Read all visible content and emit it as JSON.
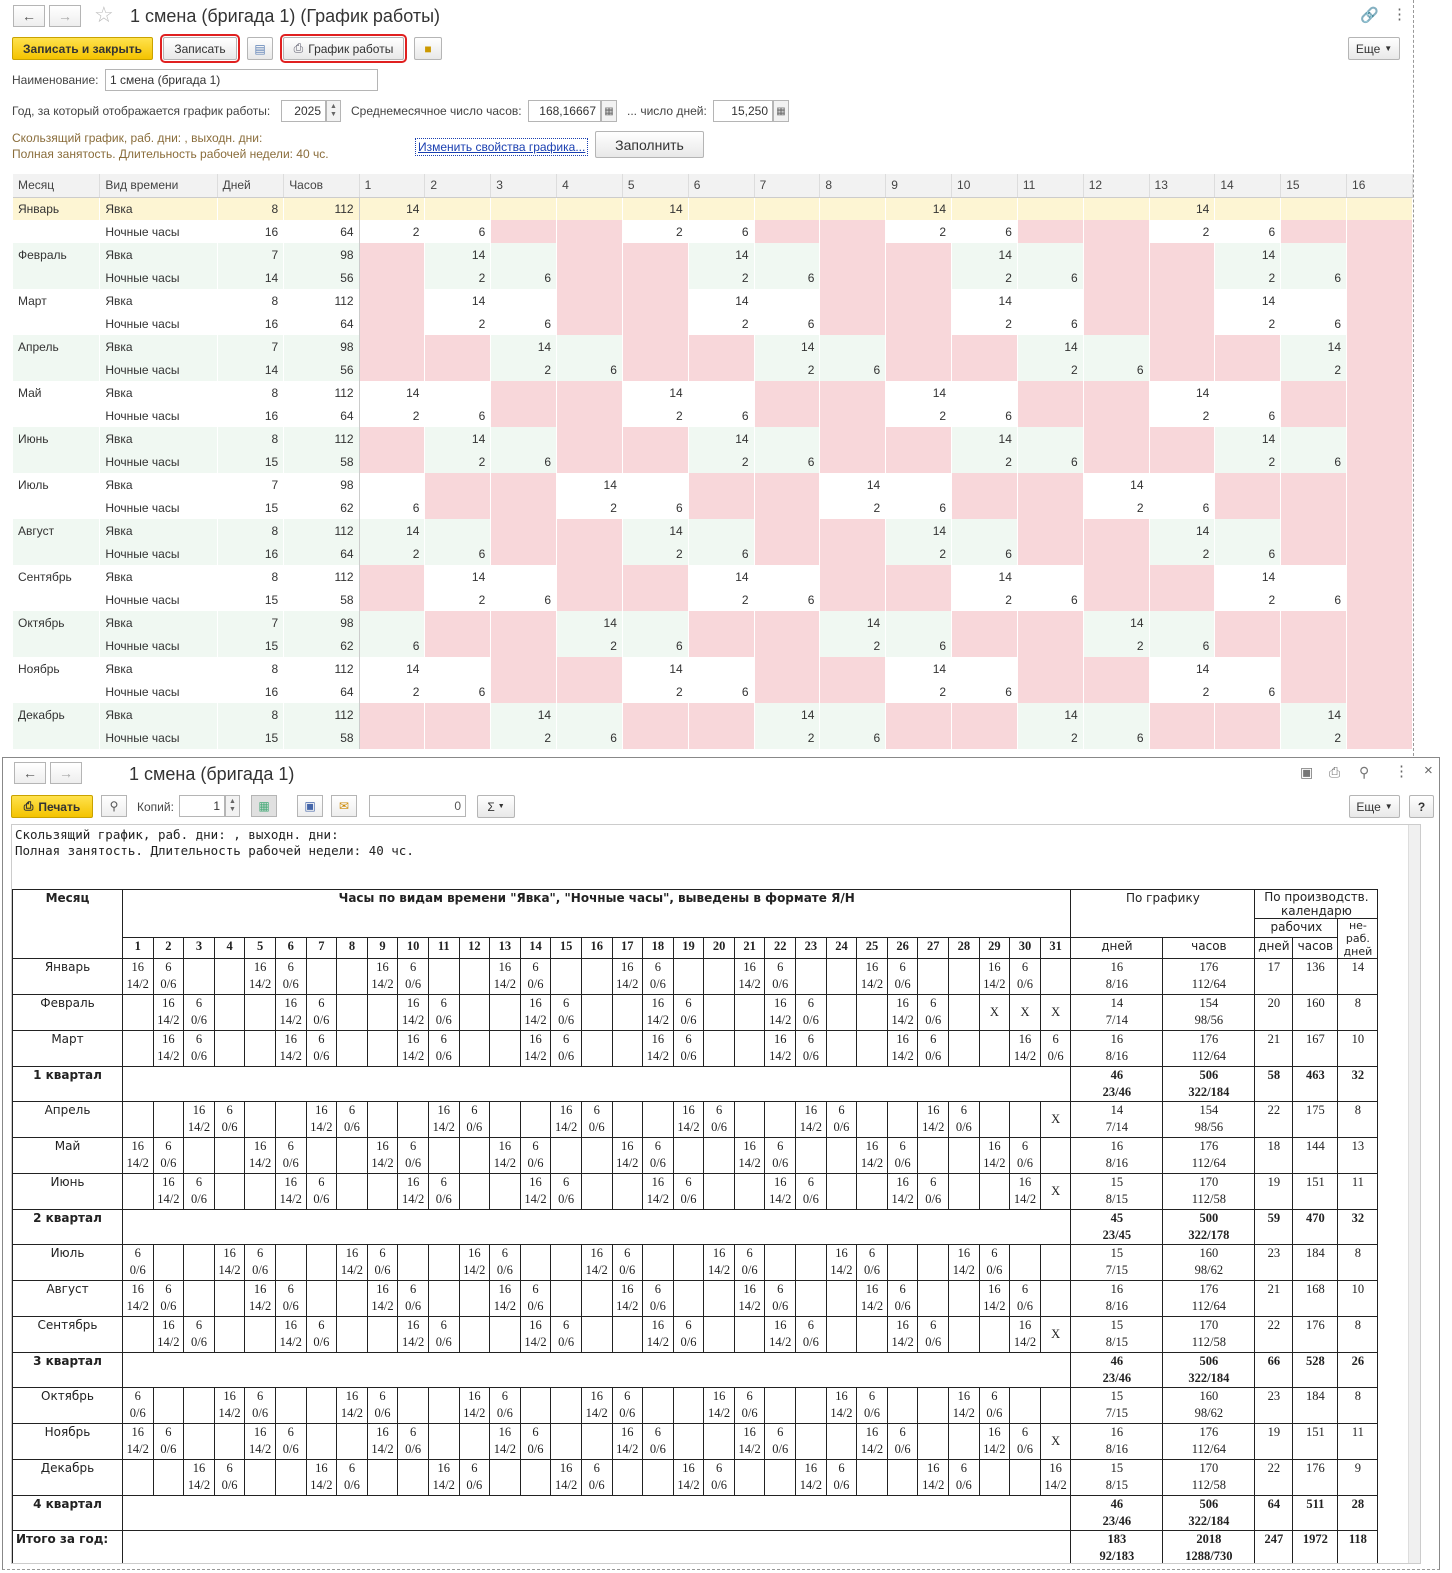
{
  "w1": {
    "title": "1 смена (бригада 1) (График работы)",
    "btn_save_close": "Записать и закрыть",
    "btn_save": "Записать",
    "btn_schedule": "График работы",
    "btn_more": "Еще",
    "name_label": "Наименование:",
    "name_value": "1 смена (бригада 1)",
    "year_label": "Год, за который отображается график работы:",
    "year_value": "2025",
    "avg_hours_label": "Среднемесячное число часов:",
    "avg_hours_value": "168,16667",
    "avg_days_label": "... число дней:",
    "avg_days_value": "15,250",
    "info_line1": "Скользящий график, раб. дни: , выходн. дни:",
    "info_line2": "Полная занятость. Длительность рабочей недели: 40 чс.",
    "change_link": "Изменить свойства графика...",
    "fill_btn": "Заполнить",
    "columns": [
      "Месяц",
      "Вид времени",
      "Дней",
      "Часов",
      "1",
      "2",
      "3",
      "4",
      "5",
      "6",
      "7",
      "8",
      "9",
      "10",
      "11",
      "12",
      "13",
      "14",
      "15",
      "16"
    ],
    "rows": [
      {
        "m": "Январь",
        "t": "Явка",
        "d": "8",
        "h": "112",
        "c": [
          "14",
          "",
          "",
          "",
          "14",
          "",
          "",
          "",
          "14",
          "",
          "",
          "",
          "14",
          "",
          "",
          ""
        ]
      },
      {
        "m": "",
        "t": "Ночные часы",
        "d": "16",
        "h": "64",
        "c": [
          "2",
          "6",
          "",
          "",
          "2",
          "6",
          "",
          "",
          "2",
          "6",
          "",
          "",
          "2",
          "6",
          "",
          ""
        ]
      },
      {
        "m": "Февраль",
        "t": "Явка",
        "d": "7",
        "h": "98",
        "c": [
          "",
          "14",
          "",
          "",
          "",
          "14",
          "",
          "",
          "",
          "14",
          "",
          "",
          "",
          "14",
          "",
          ""
        ]
      },
      {
        "m": "",
        "t": "Ночные часы",
        "d": "14",
        "h": "56",
        "c": [
          "",
          "2",
          "6",
          "",
          "",
          "2",
          "6",
          "",
          "",
          "2",
          "6",
          "",
          "",
          "2",
          "6",
          ""
        ]
      },
      {
        "m": "Март",
        "t": "Явка",
        "d": "8",
        "h": "112",
        "c": [
          "",
          "14",
          "",
          "",
          "",
          "14",
          "",
          "",
          "",
          "14",
          "",
          "",
          "",
          "14",
          "",
          ""
        ]
      },
      {
        "m": "",
        "t": "Ночные часы",
        "d": "16",
        "h": "64",
        "c": [
          "",
          "2",
          "6",
          "",
          "",
          "2",
          "6",
          "",
          "",
          "2",
          "6",
          "",
          "",
          "2",
          "6",
          ""
        ]
      },
      {
        "m": "Апрель",
        "t": "Явка",
        "d": "7",
        "h": "98",
        "c": [
          "",
          "",
          "14",
          "",
          "",
          "",
          "14",
          "",
          "",
          "",
          "14",
          "",
          "",
          "",
          "14",
          ""
        ]
      },
      {
        "m": "",
        "t": "Ночные часы",
        "d": "14",
        "h": "56",
        "c": [
          "",
          "",
          "2",
          "6",
          "",
          "",
          "2",
          "6",
          "",
          "",
          "2",
          "6",
          "",
          "",
          "2",
          ""
        ]
      },
      {
        "m": "Май",
        "t": "Явка",
        "d": "8",
        "h": "112",
        "c": [
          "14",
          "",
          "",
          "",
          "14",
          "",
          "",
          "",
          "14",
          "",
          "",
          "",
          "14",
          "",
          "",
          ""
        ]
      },
      {
        "m": "",
        "t": "Ночные часы",
        "d": "16",
        "h": "64",
        "c": [
          "2",
          "6",
          "",
          "",
          "2",
          "6",
          "",
          "",
          "2",
          "6",
          "",
          "",
          "2",
          "6",
          "",
          ""
        ]
      },
      {
        "m": "Июнь",
        "t": "Явка",
        "d": "8",
        "h": "112",
        "c": [
          "",
          "14",
          "",
          "",
          "",
          "14",
          "",
          "",
          "",
          "14",
          "",
          "",
          "",
          "14",
          "",
          ""
        ]
      },
      {
        "m": "",
        "t": "Ночные часы",
        "d": "15",
        "h": "58",
        "c": [
          "",
          "2",
          "6",
          "",
          "",
          "2",
          "6",
          "",
          "",
          "2",
          "6",
          "",
          "",
          "2",
          "6",
          ""
        ]
      },
      {
        "m": "Июль",
        "t": "Явка",
        "d": "7",
        "h": "98",
        "c": [
          "",
          "",
          "",
          "14",
          "",
          "",
          "",
          "14",
          "",
          "",
          "",
          "14",
          "",
          "",
          "",
          ""
        ]
      },
      {
        "m": "",
        "t": "Ночные часы",
        "d": "15",
        "h": "62",
        "c": [
          "6",
          "",
          "",
          "2",
          "6",
          "",
          "",
          "2",
          "6",
          "",
          "",
          "2",
          "6",
          "",
          "",
          ""
        ]
      },
      {
        "m": "Август",
        "t": "Явка",
        "d": "8",
        "h": "112",
        "c": [
          "14",
          "",
          "",
          "",
          "14",
          "",
          "",
          "",
          "14",
          "",
          "",
          "",
          "14",
          "",
          "",
          ""
        ]
      },
      {
        "m": "",
        "t": "Ночные часы",
        "d": "16",
        "h": "64",
        "c": [
          "2",
          "6",
          "",
          "",
          "2",
          "6",
          "",
          "",
          "2",
          "6",
          "",
          "",
          "2",
          "6",
          "",
          ""
        ]
      },
      {
        "m": "Сентябрь",
        "t": "Явка",
        "d": "8",
        "h": "112",
        "c": [
          "",
          "14",
          "",
          "",
          "",
          "14",
          "",
          "",
          "",
          "14",
          "",
          "",
          "",
          "14",
          "",
          ""
        ]
      },
      {
        "m": "",
        "t": "Ночные часы",
        "d": "15",
        "h": "58",
        "c": [
          "",
          "2",
          "6",
          "",
          "",
          "2",
          "6",
          "",
          "",
          "2",
          "6",
          "",
          "",
          "2",
          "6",
          ""
        ]
      },
      {
        "m": "Октябрь",
        "t": "Явка",
        "d": "7",
        "h": "98",
        "c": [
          "",
          "",
          "",
          "14",
          "",
          "",
          "",
          "14",
          "",
          "",
          "",
          "14",
          "",
          "",
          "",
          ""
        ]
      },
      {
        "m": "",
        "t": "Ночные часы",
        "d": "15",
        "h": "62",
        "c": [
          "6",
          "",
          "",
          "2",
          "6",
          "",
          "",
          "2",
          "6",
          "",
          "",
          "2",
          "6",
          "",
          "",
          ""
        ]
      },
      {
        "m": "Ноябрь",
        "t": "Явка",
        "d": "8",
        "h": "112",
        "c": [
          "14",
          "",
          "",
          "",
          "14",
          "",
          "",
          "",
          "14",
          "",
          "",
          "",
          "14",
          "",
          "",
          ""
        ]
      },
      {
        "m": "",
        "t": "Ночные часы",
        "d": "16",
        "h": "64",
        "c": [
          "2",
          "6",
          "",
          "",
          "2",
          "6",
          "",
          "",
          "2",
          "6",
          "",
          "",
          "2",
          "6",
          "",
          ""
        ]
      },
      {
        "m": "Декабрь",
        "t": "Явка",
        "d": "8",
        "h": "112",
        "c": [
          "",
          "",
          "14",
          "",
          "",
          "",
          "14",
          "",
          "",
          "",
          "14",
          "",
          "",
          "",
          "14",
          ""
        ]
      },
      {
        "m": "",
        "t": "Ночные часы",
        "d": "15",
        "h": "58",
        "c": [
          "",
          "",
          "2",
          "6",
          "",
          "",
          "2",
          "6",
          "",
          "",
          "2",
          "6",
          "",
          "",
          "2",
          ""
        ]
      }
    ]
  },
  "w2": {
    "title": "1 смена (бригада 1)",
    "btn_print": "Печать",
    "copies_label": "Копий:",
    "copies_value": "1",
    "sum_value": "0",
    "sigma": "Σ",
    "btn_more": "Еще",
    "btn_help": "?",
    "line1": "Скользящий график, раб. дни: , выходн. дни:",
    "line2": "Полная занятость. Длительность рабочей недели: 40 чс.",
    "h_month": "Месяц",
    "h_hours": "Часы по видам времени \"Явка\", \"Ночные часы\", выведены в формате Я/Н",
    "h_sched": "По графику",
    "h_prod": "По производств. календарю",
    "h_work": "рабочих",
    "h_days": "дней",
    "h_hrs": "часов",
    "h_nonwork": "не-раб. дней",
    "days": [
      "1",
      "2",
      "3",
      "4",
      "5",
      "6",
      "7",
      "8",
      "9",
      "10",
      "11",
      "12",
      "13",
      "14",
      "15",
      "16",
      "17",
      "18",
      "19",
      "20",
      "21",
      "22",
      "23",
      "24",
      "25",
      "26",
      "27",
      "28",
      "29",
      "30",
      "31"
    ],
    "rows": [
      {
        "m": "Январь",
        "p": 0,
        "len": 31,
        "sd": "16|8/16",
        "sh": "176|112/64",
        "wd": "17",
        "wh": "136",
        "nd": "14"
      },
      {
        "m": "Февраль",
        "p": 1,
        "len": 28,
        "sd": "14|7/14",
        "sh": "154|98/56",
        "wd": "20",
        "wh": "160",
        "nd": "8"
      },
      {
        "m": "Март",
        "p": 1,
        "len": 31,
        "sd": "16|8/16",
        "sh": "176|112/64",
        "wd": "21",
        "wh": "167",
        "nd": "10"
      },
      {
        "q": "1 квартал",
        "sd": "46|23/46",
        "sh": "506|322/184",
        "wd": "58",
        "wh": "463",
        "nd": "32"
      },
      {
        "m": "Апрель",
        "p": 2,
        "len": 30,
        "sd": "14|7/14",
        "sh": "154|98/56",
        "wd": "22",
        "wh": "175",
        "nd": "8"
      },
      {
        "m": "Май",
        "p": 0,
        "len": 31,
        "sd": "16|8/16",
        "sh": "176|112/64",
        "wd": "18",
        "wh": "144",
        "nd": "13"
      },
      {
        "m": "Июнь",
        "p": 1,
        "len": 30,
        "sd": "15|8/15",
        "sh": "170|112/58",
        "wd": "19",
        "wh": "151",
        "nd": "11"
      },
      {
        "q": "2 квартал",
        "sd": "45|23/45",
        "sh": "500|322/178",
        "wd": "59",
        "wh": "470",
        "nd": "32"
      },
      {
        "m": "Июль",
        "p": 3,
        "len": 31,
        "sd": "15|7/15",
        "sh": "160|98/62",
        "wd": "23",
        "wh": "184",
        "nd": "8"
      },
      {
        "m": "Август",
        "p": 0,
        "len": 31,
        "sd": "16|8/16",
        "sh": "176|112/64",
        "wd": "21",
        "wh": "168",
        "nd": "10"
      },
      {
        "m": "Сентябрь",
        "p": 1,
        "len": 30,
        "sd": "15|8/15",
        "sh": "170|112/58",
        "wd": "22",
        "wh": "176",
        "nd": "8"
      },
      {
        "q": "3 квартал",
        "sd": "46|23/46",
        "sh": "506|322/184",
        "wd": "66",
        "wh": "528",
        "nd": "26"
      },
      {
        "m": "Октябрь",
        "p": 3,
        "len": 31,
        "sd": "15|7/15",
        "sh": "160|98/62",
        "wd": "23",
        "wh": "184",
        "nd": "8"
      },
      {
        "m": "Ноябрь",
        "p": 0,
        "len": 30,
        "sd": "16|8/16",
        "sh": "176|112/64",
        "wd": "19",
        "wh": "151",
        "nd": "11"
      },
      {
        "m": "Декабрь",
        "p": 2,
        "len": 31,
        "sd": "15|8/15",
        "sh": "170|112/58",
        "wd": "22",
        "wh": "176",
        "nd": "9"
      },
      {
        "q": "4 квартал",
        "sd": "46|23/46",
        "sh": "506|322/184",
        "wd": "64",
        "wh": "511",
        "nd": "28"
      },
      {
        "q": "Итого за год:",
        "sd": "183|92/183",
        "sh": "2018|1288/730",
        "wd": "247",
        "wh": "1972",
        "nd": "118",
        "total": true
      }
    ]
  }
}
